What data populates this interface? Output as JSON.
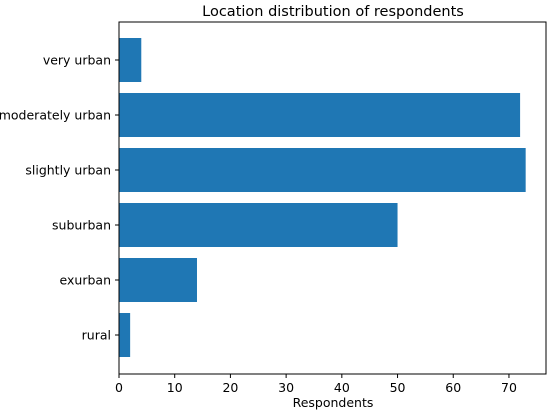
{
  "chart_data": {
    "type": "bar",
    "orientation": "horizontal",
    "title": "Location distribution of respondents",
    "xlabel": "Respondents",
    "ylabel": "",
    "categories": [
      "very urban",
      "moderately urban",
      "slightly urban",
      "suburban",
      "exurban",
      "rural"
    ],
    "values": [
      4,
      72,
      73,
      50,
      14,
      2
    ],
    "xlim": [
      0,
      76.65
    ],
    "xticks": [
      0,
      10,
      20,
      30,
      40,
      50,
      60,
      70
    ],
    "grid": false,
    "bar_color": "#1f77b4"
  }
}
